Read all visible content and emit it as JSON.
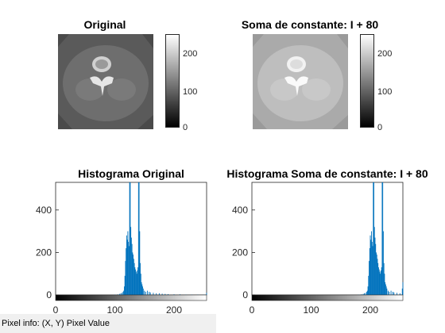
{
  "images": [
    {
      "title": "Original",
      "colorbar_ticks": [
        "0",
        "100",
        "200"
      ]
    },
    {
      "title": "Soma de constante: I + 80",
      "colorbar_ticks": [
        "0",
        "100",
        "200"
      ]
    }
  ],
  "status_bar": {
    "pixel_info": "Pixel info: (X, Y)  Pixel Value"
  },
  "chart_data": [
    {
      "type": "bar",
      "title": "Histograma Original",
      "xlim": [
        0,
        255
      ],
      "ylim": [
        0,
        530
      ],
      "xticks": [
        0,
        100,
        200
      ],
      "yticks": [
        0,
        200,
        400
      ],
      "color": "#0072BD",
      "bins": [
        [
          100,
          2
        ],
        [
          105,
          3
        ],
        [
          108,
          5
        ],
        [
          110,
          8
        ],
        [
          112,
          10
        ],
        [
          114,
          15
        ],
        [
          115,
          20
        ],
        [
          116,
          40
        ],
        [
          117,
          90
        ],
        [
          118,
          160
        ],
        [
          119,
          220
        ],
        [
          120,
          280
        ],
        [
          121,
          260
        ],
        [
          122,
          300
        ],
        [
          123,
          250
        ],
        [
          124,
          230
        ],
        [
          125,
          560
        ],
        [
          126,
          560
        ],
        [
          127,
          320
        ],
        [
          128,
          270
        ],
        [
          129,
          240
        ],
        [
          130,
          200
        ],
        [
          131,
          190
        ],
        [
          132,
          170
        ],
        [
          133,
          150
        ],
        [
          134,
          130
        ],
        [
          135,
          120
        ],
        [
          136,
          110
        ],
        [
          137,
          100
        ],
        [
          138,
          115
        ],
        [
          139,
          130
        ],
        [
          140,
          560
        ],
        [
          141,
          560
        ],
        [
          142,
          300
        ],
        [
          143,
          150
        ],
        [
          144,
          100
        ],
        [
          145,
          60
        ],
        [
          146,
          50
        ],
        [
          147,
          40
        ],
        [
          148,
          30
        ],
        [
          150,
          20
        ],
        [
          152,
          15
        ],
        [
          155,
          20
        ],
        [
          158,
          15
        ],
        [
          160,
          12
        ],
        [
          165,
          10
        ],
        [
          170,
          8
        ],
        [
          175,
          8
        ],
        [
          180,
          6
        ],
        [
          185,
          5
        ],
        [
          190,
          4
        ],
        [
          200,
          3
        ],
        [
          210,
          3
        ],
        [
          220,
          2
        ],
        [
          230,
          2
        ],
        [
          240,
          2
        ],
        [
          250,
          2
        ],
        [
          255,
          10
        ]
      ]
    },
    {
      "type": "bar",
      "title": "Histograma Soma de constante: I + 80",
      "xlim": [
        0,
        255
      ],
      "ylim": [
        0,
        530
      ],
      "xticks": [
        0,
        100,
        200
      ],
      "yticks": [
        0,
        200,
        400
      ],
      "color": "#0072BD",
      "bins": [
        [
          180,
          2
        ],
        [
          185,
          3
        ],
        [
          188,
          5
        ],
        [
          190,
          8
        ],
        [
          192,
          10
        ],
        [
          194,
          15
        ],
        [
          195,
          20
        ],
        [
          196,
          40
        ],
        [
          197,
          90
        ],
        [
          198,
          160
        ],
        [
          199,
          220
        ],
        [
          200,
          280
        ],
        [
          201,
          260
        ],
        [
          202,
          300
        ],
        [
          203,
          250
        ],
        [
          204,
          230
        ],
        [
          205,
          560
        ],
        [
          206,
          560
        ],
        [
          207,
          320
        ],
        [
          208,
          270
        ],
        [
          209,
          240
        ],
        [
          210,
          200
        ],
        [
          211,
          190
        ],
        [
          212,
          170
        ],
        [
          213,
          150
        ],
        [
          214,
          130
        ],
        [
          215,
          120
        ],
        [
          216,
          110
        ],
        [
          217,
          100
        ],
        [
          218,
          115
        ],
        [
          219,
          130
        ],
        [
          220,
          560
        ],
        [
          221,
          560
        ],
        [
          222,
          300
        ],
        [
          223,
          150
        ],
        [
          224,
          100
        ],
        [
          225,
          60
        ],
        [
          226,
          50
        ],
        [
          227,
          40
        ],
        [
          228,
          30
        ],
        [
          230,
          20
        ],
        [
          232,
          15
        ],
        [
          235,
          20
        ],
        [
          238,
          15
        ],
        [
          240,
          12
        ],
        [
          245,
          10
        ],
        [
          250,
          8
        ],
        [
          254,
          30
        ],
        [
          255,
          60
        ]
      ]
    }
  ]
}
